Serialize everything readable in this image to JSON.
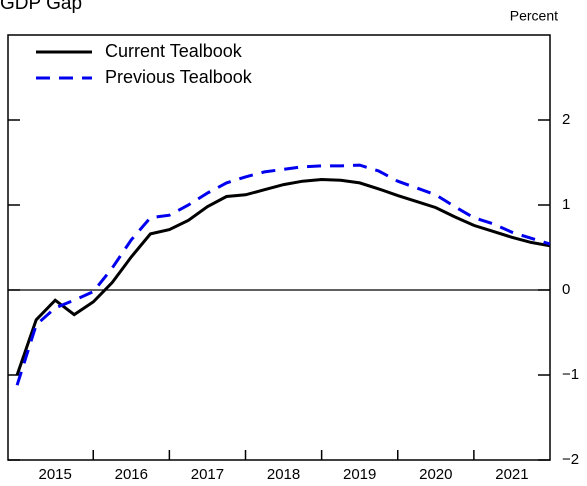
{
  "chart_data": {
    "type": "line",
    "title": "GDP Gap",
    "y_label": "Percent",
    "x": [
      2015.0,
      2015.25,
      2015.5,
      2015.75,
      2016.0,
      2016.25,
      2016.5,
      2016.75,
      2017.0,
      2017.25,
      2017.5,
      2017.75,
      2018.0,
      2018.25,
      2018.5,
      2018.75,
      2019.0,
      2019.25,
      2019.5,
      2019.75,
      2020.0,
      2020.25,
      2020.5,
      2020.75,
      2021.0,
      2021.25,
      2021.5,
      2021.75,
      2022.0
    ],
    "series": [
      {
        "name": "Current Tealbook",
        "color": "#000000",
        "dash": false,
        "values": [
          -1.0,
          -0.35,
          -0.12,
          -0.29,
          -0.14,
          0.09,
          0.39,
          0.66,
          0.71,
          0.82,
          0.98,
          1.1,
          1.12,
          1.18,
          1.24,
          1.28,
          1.3,
          1.29,
          1.26,
          1.19,
          1.11,
          1.04,
          0.97,
          0.86,
          0.76,
          0.69,
          0.62,
          0.56,
          0.52
        ]
      },
      {
        "name": "Previous Tealbook",
        "color": "#0000ee",
        "dash": true,
        "values": [
          -1.12,
          -0.41,
          -0.21,
          -0.12,
          -0.02,
          0.26,
          0.59,
          0.85,
          0.88,
          1.0,
          1.14,
          1.26,
          1.33,
          1.39,
          1.42,
          1.45,
          1.46,
          1.46,
          1.47,
          1.4,
          1.28,
          1.2,
          1.12,
          0.98,
          0.85,
          0.78,
          0.68,
          0.61,
          0.54
        ]
      }
    ],
    "xlim": [
      2014.88,
      2022.0
    ],
    "xticks": [
      {
        "value": 2015.5,
        "label": "2015"
      },
      {
        "value": 2016.5,
        "label": "2016"
      },
      {
        "value": 2017.5,
        "label": "2017"
      },
      {
        "value": 2018.5,
        "label": "2018"
      },
      {
        "value": 2019.5,
        "label": "2019"
      },
      {
        "value": 2020.5,
        "label": "2020"
      },
      {
        "value": 2021.5,
        "label": "2021"
      }
    ],
    "ylim": [
      -2,
      3
    ],
    "yticks": [
      {
        "value": -2,
        "label": "−2"
      },
      {
        "value": -1,
        "label": "−1"
      },
      0,
      1,
      2
    ],
    "zero_line": true,
    "legend": "upper left"
  }
}
